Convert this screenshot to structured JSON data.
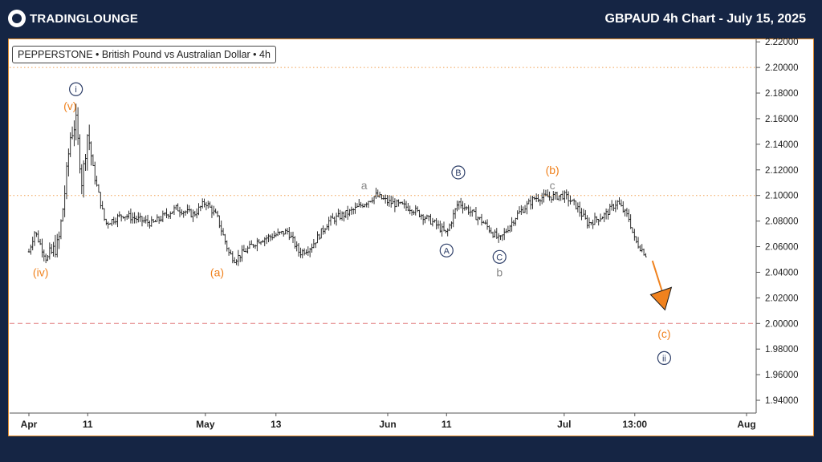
{
  "header": {
    "logo_text": "TRADINGLOUNGE",
    "title": "GBPAUD 4h Chart - July 15, 2025"
  },
  "ticker_label": "PEPPERSTONE • British Pound vs Australian Dollar • 4h",
  "colors": {
    "background": "#152544",
    "orange": "#f0821e",
    "navy": "#2d3e68",
    "gray": "#888888",
    "red_dashed": "#e0787a",
    "dotted_level": "#f0a050"
  },
  "chart_data": {
    "type": "ohlc",
    "title": "",
    "x_ticks": [
      "Apr",
      "11",
      "May",
      "13",
      "Jun",
      "11",
      "Jul",
      "13:00",
      "Aug"
    ],
    "y_ticks": [
      "2.22000",
      "2.20000",
      "2.18000",
      "2.16000",
      "2.14000",
      "2.12000",
      "2.10000",
      "2.08000",
      "2.06000",
      "2.04000",
      "2.02000",
      "2.00000",
      "1.98000",
      "1.96000",
      "1.94000"
    ],
    "ylim": [
      1.93,
      2.222
    ],
    "x_dates": [
      "Apr 1",
      "Apr 11",
      "May 1",
      "May 13",
      "Jun 1",
      "Jun 11",
      "Jul 1",
      "Jul 13",
      "Aug 1"
    ],
    "price_path": [
      {
        "date": "Apr 1",
        "price": 2.056
      },
      {
        "date": "Apr 2",
        "price": 2.072
      },
      {
        "date": "Apr 4",
        "price": 2.05
      },
      {
        "date": "Apr 6",
        "price": 2.062
      },
      {
        "date": "Apr 7",
        "price": 2.098
      },
      {
        "date": "Apr 8",
        "price": 2.145
      },
      {
        "date": "Apr 9",
        "price": 2.158
      },
      {
        "date": "Apr 10",
        "price": 2.11
      },
      {
        "date": "Apr 11",
        "price": 2.15
      },
      {
        "date": "Apr 12",
        "price": 2.118
      },
      {
        "date": "Apr 14",
        "price": 2.078
      },
      {
        "date": "Apr 17",
        "price": 2.085
      },
      {
        "date": "Apr 22",
        "price": 2.078
      },
      {
        "date": "Apr 26",
        "price": 2.09
      },
      {
        "date": "Apr 29",
        "price": 2.085
      },
      {
        "date": "May 1",
        "price": 2.095
      },
      {
        "date": "May 3",
        "price": 2.083
      },
      {
        "date": "May 5",
        "price": 2.055
      },
      {
        "date": "May 6",
        "price": 2.05
      },
      {
        "date": "May 10",
        "price": 2.065
      },
      {
        "date": "May 15",
        "price": 2.072
      },
      {
        "date": "May 17",
        "price": 2.055
      },
      {
        "date": "May 19",
        "price": 2.06
      },
      {
        "date": "May 22",
        "price": 2.08
      },
      {
        "date": "May 26",
        "price": 2.088
      },
      {
        "date": "May 30",
        "price": 2.1
      },
      {
        "date": "Jun 1",
        "price": 2.095
      },
      {
        "date": "Jun 5",
        "price": 2.09
      },
      {
        "date": "Jun 9",
        "price": 2.078
      },
      {
        "date": "Jun 11",
        "price": 2.07
      },
      {
        "date": "Jun 13",
        "price": 2.095
      },
      {
        "date": "Jun 17",
        "price": 2.08
      },
      {
        "date": "Jun 20",
        "price": 2.065
      },
      {
        "date": "Jun 23",
        "price": 2.085
      },
      {
        "date": "Jun 26",
        "price": 2.098
      },
      {
        "date": "Jul 1",
        "price": 2.1
      },
      {
        "date": "Jul 3",
        "price": 2.092
      },
      {
        "date": "Jul 5",
        "price": 2.078
      },
      {
        "date": "Jul 8",
        "price": 2.085
      },
      {
        "date": "Jul 10",
        "price": 2.095
      },
      {
        "date": "Jul 12",
        "price": 2.082
      },
      {
        "date": "Jul 13",
        "price": 2.065
      },
      {
        "date": "Jul 15",
        "price": 2.053
      }
    ],
    "horizontal_levels": [
      {
        "price": 2.2,
        "style": "dotted"
      },
      {
        "price": 2.1,
        "style": "dotted"
      },
      {
        "price": 2.0,
        "style": "dashed"
      }
    ],
    "projection_arrow": {
      "from": {
        "date": "Jul 16",
        "price": 2.049
      },
      "to": {
        "date": "Jul 18",
        "price": 2.015
      }
    },
    "wave_labels": [
      {
        "text": "i",
        "date": "Apr 9",
        "price": 2.183,
        "circled": true,
        "color": "navy"
      },
      {
        "text": "(v)",
        "date": "Apr 8",
        "price": 2.17,
        "circled": false,
        "color": "orange"
      },
      {
        "text": "(iv)",
        "date": "Apr 3",
        "price": 2.04,
        "circled": false,
        "color": "orange"
      },
      {
        "text": "(a)",
        "date": "May 3",
        "price": 2.04,
        "circled": false,
        "color": "orange"
      },
      {
        "text": "a",
        "date": "May 28",
        "price": 2.108,
        "circled": false,
        "color": "gray"
      },
      {
        "text": "B",
        "date": "Jun 13",
        "price": 2.118,
        "circled": true,
        "color": "navy"
      },
      {
        "text": "A",
        "date": "Jun 11",
        "price": 2.057,
        "circled": true,
        "color": "navy"
      },
      {
        "text": "C",
        "date": "Jun 20",
        "price": 2.052,
        "circled": true,
        "color": "navy"
      },
      {
        "text": "b",
        "date": "Jun 20",
        "price": 2.04,
        "circled": false,
        "color": "gray"
      },
      {
        "text": "(b)",
        "date": "Jun 29",
        "price": 2.12,
        "circled": false,
        "color": "orange"
      },
      {
        "text": "c",
        "date": "Jun 29",
        "price": 2.108,
        "circled": false,
        "color": "gray"
      },
      {
        "text": "(c)",
        "date": "Jul 18",
        "price": 1.992,
        "circled": false,
        "color": "orange"
      },
      {
        "text": "ii",
        "date": "Jul 18",
        "price": 1.973,
        "circled": true,
        "color": "navy"
      }
    ]
  }
}
